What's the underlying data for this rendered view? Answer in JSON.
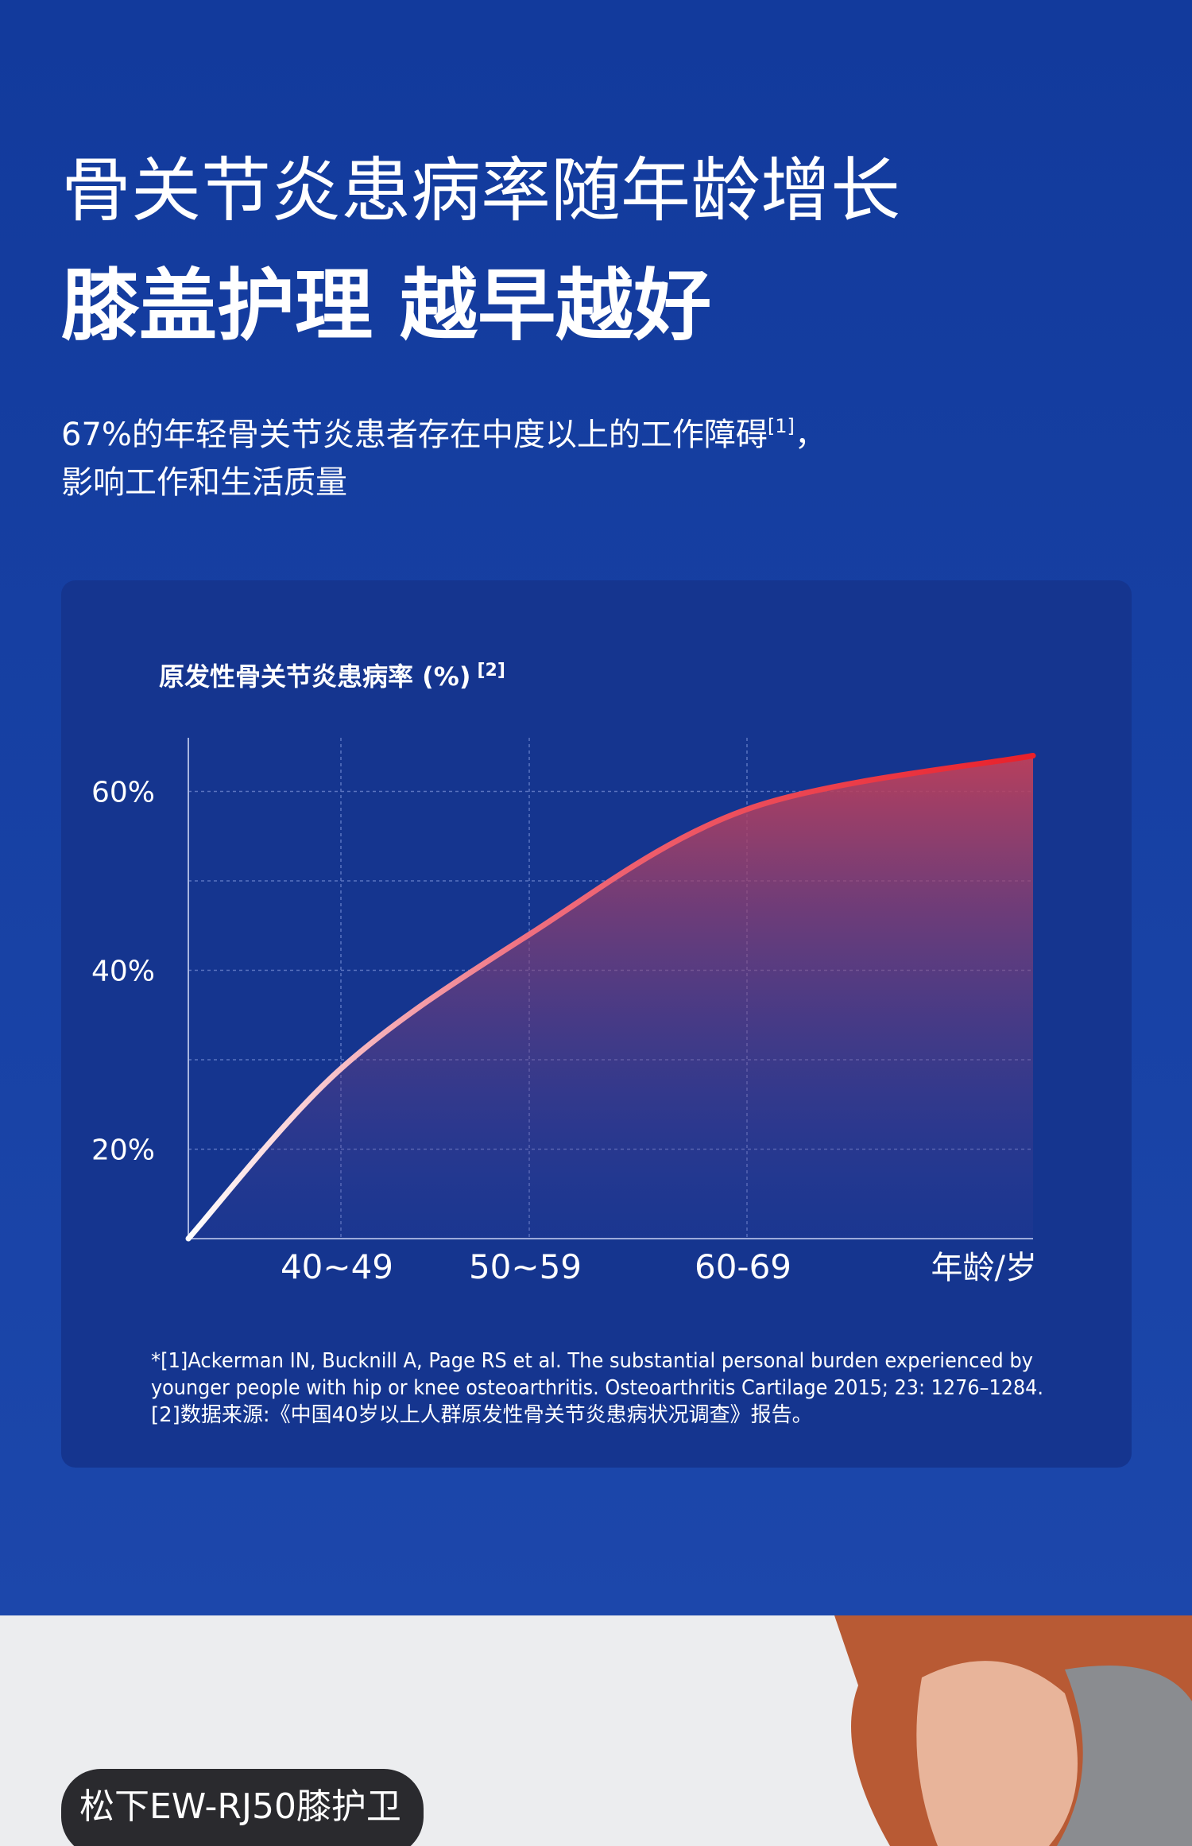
{
  "header": {
    "title": "骨关节炎患病率随年龄增长",
    "headline": "膝盖护理 越早越好",
    "subtitle_line1": "67%的年轻骨关节炎患者存在中度以上的工作障碍",
    "subtitle_ref": "[1]",
    "subtitle_punct": "，",
    "subtitle_line2": "影响工作和生活质量"
  },
  "chart_data": {
    "type": "line",
    "title": "原发性骨关节炎患病率 (%)",
    "title_ref": "[2]",
    "x_label": "年龄/岁",
    "categories": [
      null,
      "40~49",
      "50~59",
      "60-69",
      null
    ],
    "values": [
      10,
      29,
      44,
      58,
      64
    ],
    "color": "#e8202a",
    "ylim": [
      10,
      66
    ],
    "yticks": [
      {
        "value": 20,
        "label": "20%"
      },
      {
        "value": 40,
        "label": "40%"
      },
      {
        "value": 60,
        "label": "60%"
      }
    ],
    "grid_lines": [
      20,
      30,
      40,
      50,
      60
    ],
    "grid": true
  },
  "footnotes": [
    "*[1]Ackerman IN, Bucknill A, Page RS et al. The substantial personal burden experienced by",
    "younger people with hip or knee osteoarthritis. Osteoarthritis Cartilage 2015; 23: 1276–1284.",
    "[2]数据来源:《中国40岁以上人群原发性骨关节炎患病状况调查》报告。"
  ],
  "product_badge": "松下EW-RJ50膝护卫"
}
